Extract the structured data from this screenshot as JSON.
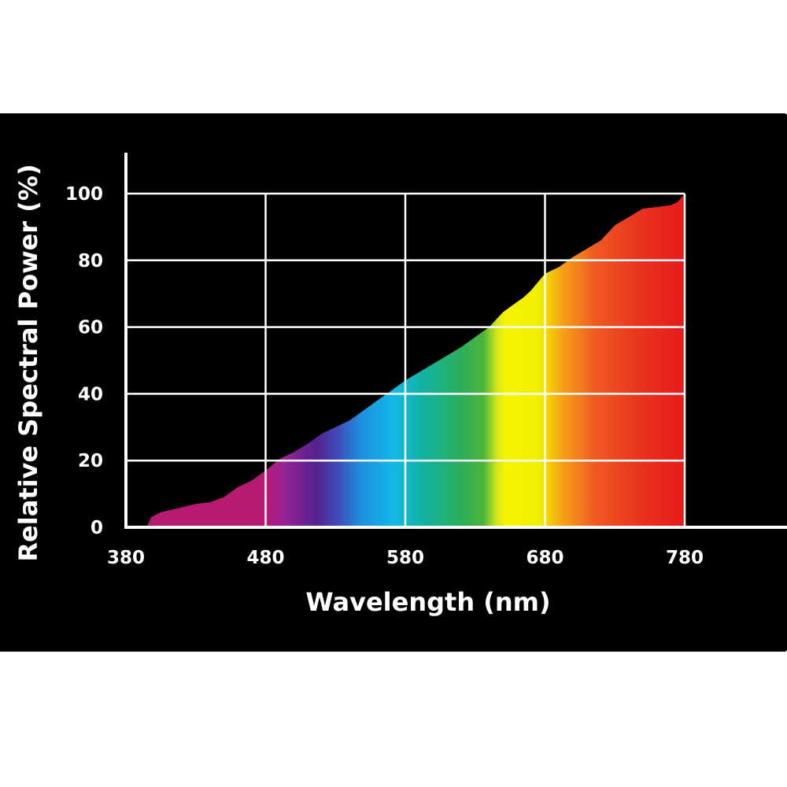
{
  "chart_data": {
    "type": "area",
    "title": "",
    "xlabel": "Wavelength (nm)",
    "ylabel": "Relative Spectral Power (%)",
    "xlim": [
      380,
      780
    ],
    "ylim": [
      0,
      100
    ],
    "x_ticks": [
      380,
      480,
      580,
      680,
      780
    ],
    "y_ticks": [
      0,
      20,
      40,
      60,
      80,
      100
    ],
    "grid": true,
    "fill": "visible-spectrum gradient",
    "series": [
      {
        "x": [
          395,
          398,
          405,
          420,
          430,
          440,
          450,
          460,
          470,
          480,
          490,
          500,
          510,
          520,
          530,
          540,
          550,
          560,
          570,
          580,
          590,
          600,
          610,
          620,
          630,
          640,
          650,
          660,
          665,
          670,
          680,
          690,
          700,
          710,
          720,
          730,
          740,
          750,
          760,
          770,
          775,
          780
        ],
        "y": [
          0,
          3,
          4.5,
          6,
          7,
          7.5,
          9,
          12,
          14,
          17,
          20.5,
          22.5,
          25,
          28,
          30,
          32,
          35,
          38,
          41,
          44,
          46.5,
          49,
          51.5,
          54,
          57,
          60,
          64.5,
          67.5,
          69,
          71,
          76,
          78,
          81,
          83.5,
          86,
          90.5,
          93,
          95.5,
          96,
          96.5,
          97.5,
          100
        ]
      }
    ]
  }
}
